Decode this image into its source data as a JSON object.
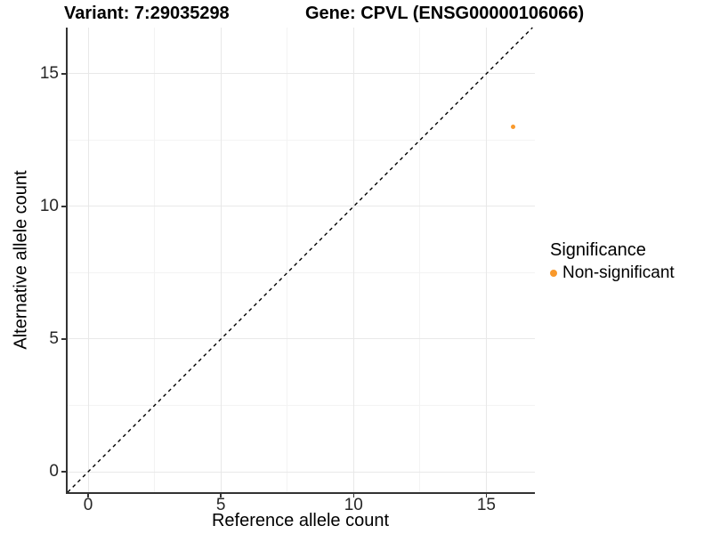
{
  "titles": {
    "variant": "Variant: 7:29035298",
    "gene": "Gene: CPVL (ENSG00000106066)"
  },
  "axes": {
    "x_label": "Reference allele count",
    "y_label": "Alternative allele count"
  },
  "legend": {
    "title": "Significance",
    "items": [
      {
        "label": "Non-significant",
        "color": "#F9992B"
      }
    ]
  },
  "chart_data": {
    "type": "scatter",
    "title": "Variant: 7:29035298   Gene: CPVL (ENSG00000106066)",
    "xlabel": "Reference allele count",
    "ylabel": "Alternative allele count",
    "xlim": [
      -0.84,
      16.83
    ],
    "ylim": [
      -0.77,
      16.74
    ],
    "x_ticks": [
      0,
      5,
      10,
      15
    ],
    "y_ticks": [
      0,
      5,
      10,
      15
    ],
    "x_tick_labels": [
      "0",
      "5",
      "10",
      "15"
    ],
    "y_tick_labels": [
      "0",
      "5",
      "10",
      "15"
    ],
    "minor_ticks": [
      2.5,
      7.5,
      12.5
    ],
    "grid": true,
    "legend_position": "right",
    "series": [
      {
        "name": "Non-significant",
        "color": "#F9992B",
        "points": [
          {
            "x": 16,
            "y": 13
          }
        ]
      }
    ],
    "reference_line": {
      "equation": "y = x",
      "style": "dashed",
      "color": "#000000"
    },
    "colors": {
      "point": "#F9992B",
      "grid_major": "#e8e8e8",
      "grid_minor": "#f3f3f3",
      "axis": "#333333",
      "background": "#ffffff"
    }
  }
}
